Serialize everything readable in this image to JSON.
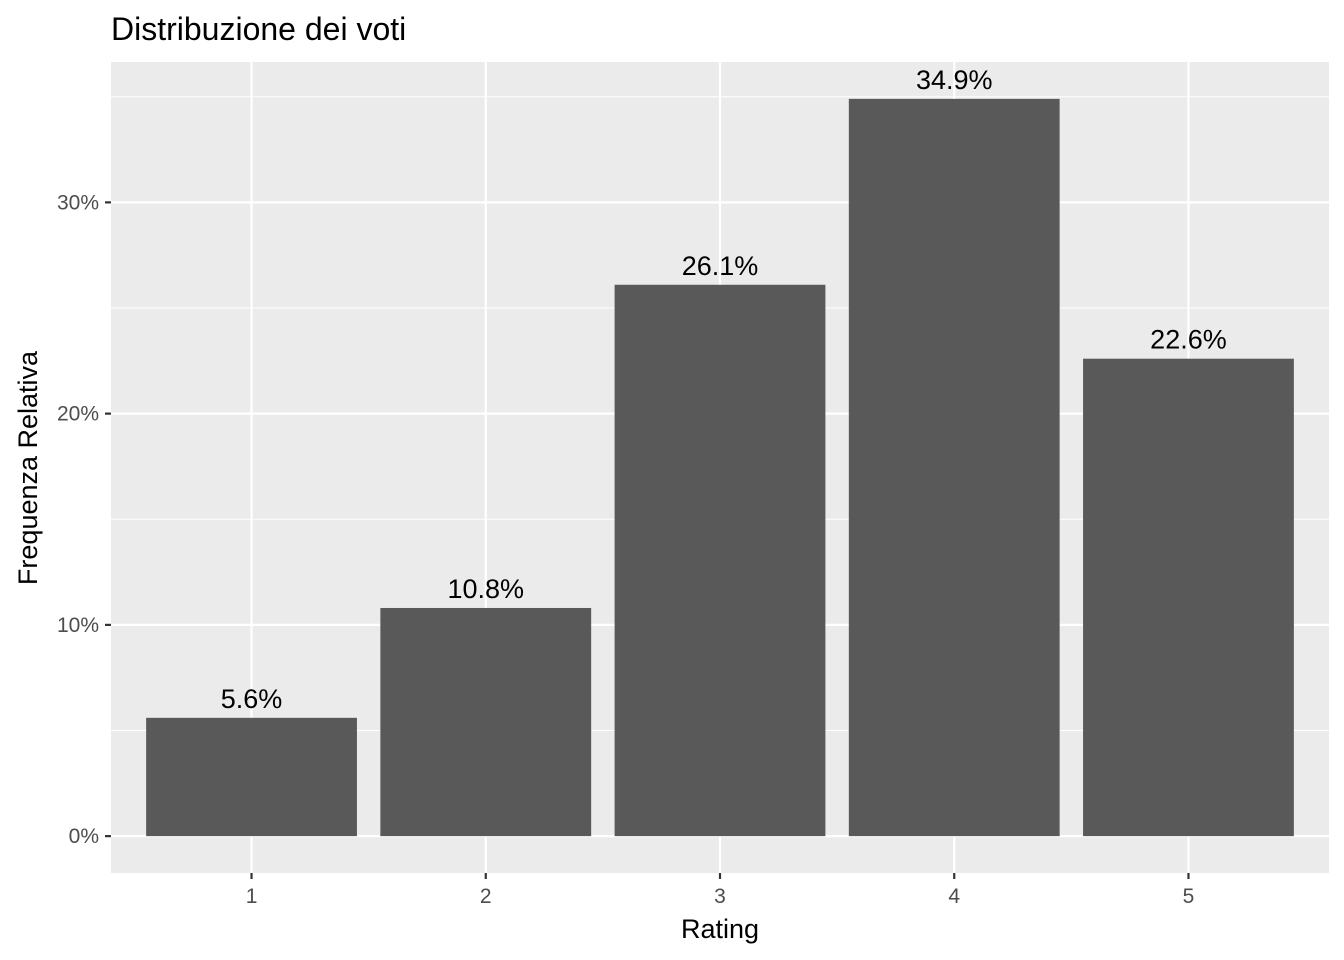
{
  "chart_data": {
    "type": "bar",
    "title": "Distribuzione dei voti",
    "xlabel": "Rating",
    "ylabel": "Frequenza Relativa",
    "categories": [
      "1",
      "2",
      "3",
      "4",
      "5"
    ],
    "values": [
      5.6,
      10.8,
      26.1,
      34.9,
      22.6
    ],
    "value_labels": [
      "5.6%",
      "10.8%",
      "26.1%",
      "34.9%",
      "22.6%"
    ],
    "y_ticks": [
      0,
      10,
      20,
      30
    ],
    "y_tick_labels": [
      "0%",
      "10%",
      "20%",
      "30%"
    ],
    "ylim": [
      -1.745,
      36.645
    ],
    "grid": true,
    "legend": "none",
    "colors": {
      "panel_background": "#ebebeb",
      "grid": "#ffffff",
      "bar": "#595959",
      "tick_text": "#4d4d4d",
      "text": "#000000"
    }
  }
}
